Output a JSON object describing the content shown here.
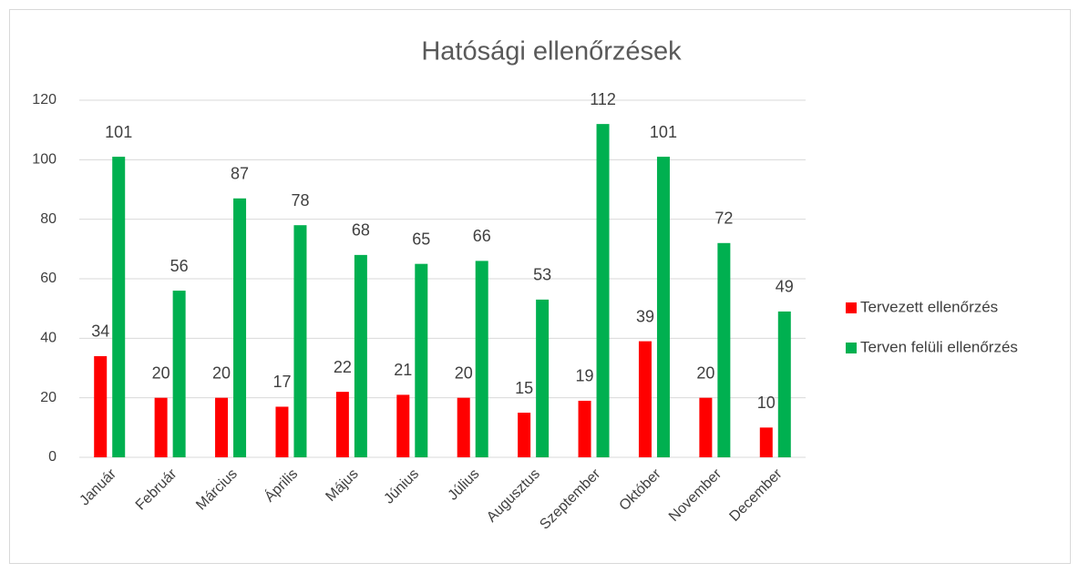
{
  "chart_data": {
    "type": "bar",
    "title": "Hatósági ellenőrzések",
    "categories": [
      "Január",
      "Február",
      "Március",
      "Április",
      "Május",
      "Június",
      "Július",
      "Augusztus",
      "Szeptember",
      "Október",
      "November",
      "December"
    ],
    "series": [
      {
        "name": "Tervezett ellenőrzés",
        "color": "#ff0000",
        "values": [
          34,
          20,
          20,
          17,
          22,
          21,
          20,
          15,
          19,
          39,
          20,
          10
        ]
      },
      {
        "name": "Terven felüli ellenőrzés",
        "color": "#00b050",
        "values": [
          101,
          56,
          87,
          78,
          68,
          65,
          66,
          53,
          112,
          101,
          72,
          49
        ]
      }
    ],
    "ylim": [
      0,
      120
    ],
    "yticks": [
      0,
      20,
      40,
      60,
      80,
      100,
      120
    ],
    "grid": true,
    "legend": "right"
  }
}
